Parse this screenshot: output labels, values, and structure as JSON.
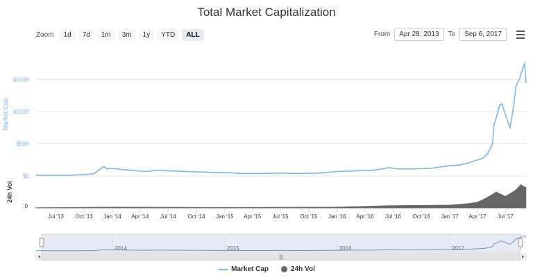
{
  "title": "Total Market Capitalization",
  "zoom": {
    "label": "Zoom",
    "buttons": [
      "1d",
      "7d",
      "1m",
      "3m",
      "1y",
      "YTD",
      "ALL"
    ],
    "active": "ALL"
  },
  "range": {
    "from_label": "From",
    "from_value": "Apr 28, 2013",
    "to_label": "To",
    "to_value": "Sep 6, 2017"
  },
  "legend": {
    "market_cap": "Market Cap",
    "volume": "24h Vol"
  },
  "colors": {
    "market_cap": "#7cb5ec",
    "volume": "#666666",
    "navigator_mask": "#e6ebf5"
  },
  "chart_data": {
    "type": "line",
    "title": "Total Market Capitalization",
    "xlabel": "",
    "ylabel": "Market Cap",
    "ylim": [
      0,
      175
    ],
    "y_unit": "$B",
    "yticks": [
      "$0",
      "$50B",
      "$100B",
      "$150B"
    ],
    "ytick_values": [
      0,
      50,
      100,
      150
    ],
    "xticks": [
      "Jul '13",
      "Oct '13",
      "Jan '14",
      "Apr '14",
      "Jul '14",
      "Oct '14",
      "Jan '15",
      "Apr '15",
      "Jul '15",
      "Oct '15",
      "Jan '16",
      "Apr '16",
      "Jul '16",
      "Oct '16",
      "Jan '17",
      "Apr '17",
      "Jul '17"
    ],
    "xtick_dates": [
      "2013-07-01",
      "2013-10-01",
      "2014-01-01",
      "2014-04-01",
      "2014-07-01",
      "2014-10-01",
      "2015-01-01",
      "2015-04-01",
      "2015-07-01",
      "2015-10-01",
      "2016-01-01",
      "2016-04-01",
      "2016-07-01",
      "2016-10-01",
      "2017-01-01",
      "2017-04-01",
      "2017-07-01"
    ],
    "xlim": [
      "2013-04-28",
      "2017-09-06"
    ],
    "grid": true,
    "legend_position": "bottom",
    "series": [
      {
        "name": "Market Cap",
        "x": [
          "2013-04-28",
          "2013-06-01",
          "2013-08-01",
          "2013-10-01",
          "2013-11-01",
          "2013-11-20",
          "2013-12-04",
          "2013-12-15",
          "2014-01-01",
          "2014-02-01",
          "2014-03-01",
          "2014-04-15",
          "2014-06-01",
          "2014-07-01",
          "2014-09-01",
          "2014-11-01",
          "2015-01-15",
          "2015-03-01",
          "2015-05-01",
          "2015-07-01",
          "2015-09-01",
          "2015-11-01",
          "2016-01-01",
          "2016-03-01",
          "2016-05-01",
          "2016-06-18",
          "2016-07-15",
          "2016-09-01",
          "2016-11-01",
          "2017-01-01",
          "2017-02-01",
          "2017-03-01",
          "2017-04-01",
          "2017-04-20",
          "2017-05-05",
          "2017-05-20",
          "2017-05-25",
          "2017-06-01",
          "2017-06-12",
          "2017-06-20",
          "2017-07-01",
          "2017-07-16",
          "2017-07-25",
          "2017-08-05",
          "2017-08-15",
          "2017-08-25",
          "2017-09-01",
          "2017-09-06"
        ],
        "values": [
          1.5,
          1.2,
          1.3,
          2.0,
          3.5,
          10,
          15,
          11,
          12,
          10,
          9,
          7,
          9,
          8,
          7,
          6,
          5,
          4,
          4,
          4.5,
          4,
          4.5,
          7,
          8,
          9,
          13,
          11,
          11,
          12,
          16,
          17,
          20,
          25,
          28,
          35,
          50,
          80,
          90,
          110,
          112,
          95,
          75,
          100,
          140,
          150,
          165,
          175,
          145
        ]
      },
      {
        "name": "24h Vol",
        "ylabel": "24h Vol",
        "yticks": [
          "0"
        ],
        "x": [
          "2013-04-28",
          "2014-01-01",
          "2015-01-01",
          "2016-01-01",
          "2016-06-18",
          "2017-01-01",
          "2017-03-01",
          "2017-04-01",
          "2017-05-01",
          "2017-06-01",
          "2017-07-01",
          "2017-08-01",
          "2017-08-20",
          "2017-09-06"
        ],
        "values": [
          0.1,
          0.3,
          0.2,
          0.3,
          0.8,
          1,
          1.5,
          2,
          3.5,
          5.5,
          4,
          6,
          8,
          7
        ]
      }
    ],
    "navigator": {
      "labels": [
        "2014",
        "2015",
        "2016",
        "2017"
      ]
    }
  }
}
